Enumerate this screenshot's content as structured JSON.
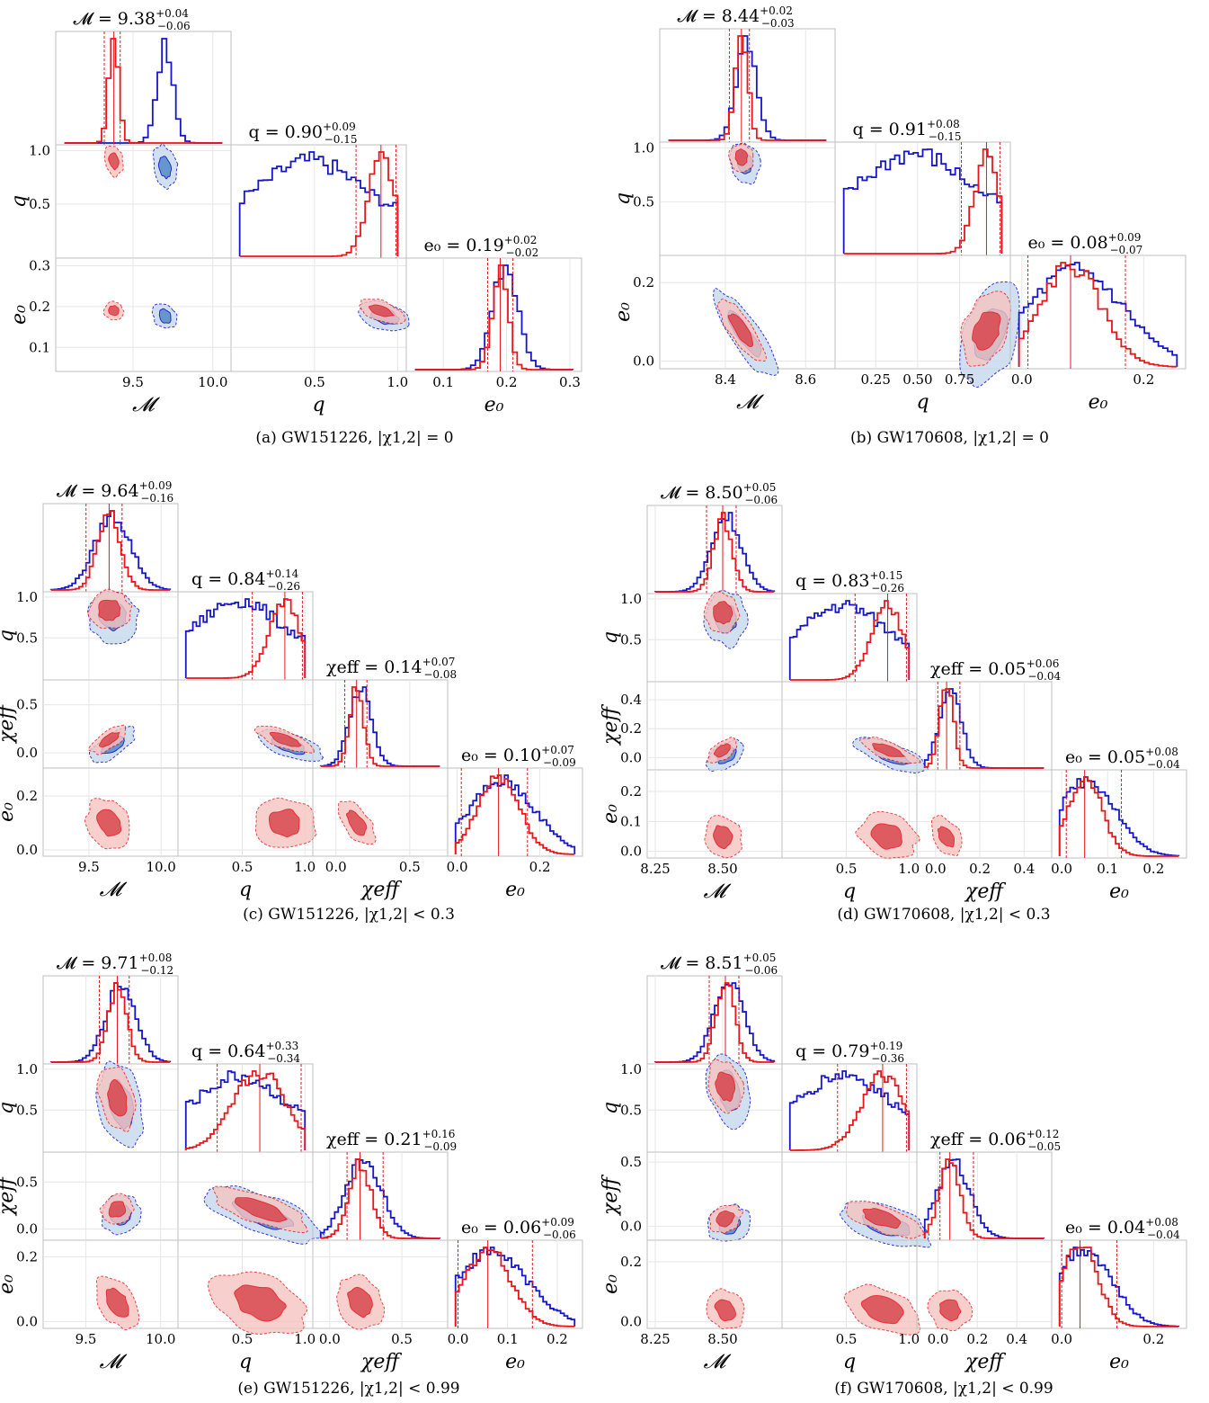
{
  "colors": {
    "red": "#e8161b",
    "red_fill_dark": "#d9484f",
    "red_fill_light": "#f6c4c0",
    "blue": "#1515cc",
    "blue_fill_dark": "#5b8fcc",
    "blue_fill_light": "#c9dbef",
    "grid": "#e6e6e6",
    "frame": "#bfbfbf"
  },
  "chart_data": [
    {
      "type": "corner",
      "caption": "(a) GW151226, |χ1,2| = 0",
      "parameters": [
        {
          "symbol": "𝓜",
          "label": "𝓜",
          "title": "𝓜 = 9.38",
          "plus": "+0.04",
          "minus": "−0.06",
          "range": [
            9.05,
            10.08
          ],
          "ticks": [
            "9.5",
            "10.0"
          ],
          "tick_values": [
            9.5,
            10.0
          ],
          "red_median": 9.38,
          "red_lo": 9.32,
          "red_hi": 9.42,
          "blue_center": 9.7,
          "red_center": 9.38
        },
        {
          "symbol": "q",
          "label": "q",
          "title": "q = 0.90",
          "plus": "+0.09",
          "minus": "−0.15",
          "range": [
            0.03,
            1.02
          ],
          "ticks": [
            "0.5",
            "1.0"
          ],
          "tick_values": [
            0.5,
            1.0
          ],
          "y_ticks": [
            "0.5",
            "1.0"
          ],
          "red_median": 0.9,
          "red_lo": 0.75,
          "red_hi": 0.99
        },
        {
          "symbol": "e₀",
          "label": "e₀",
          "title": "e₀ = 0.19",
          "plus": "+0.02",
          "minus": "−0.02",
          "range": [
            0.05,
            0.31
          ],
          "ticks": [
            "0.1",
            "0.2",
            "0.3"
          ],
          "tick_values": [
            0.1,
            0.2,
            0.3
          ],
          "y_ticks": [
            "0.1",
            "0.2",
            "0.3"
          ],
          "red_median": 0.19,
          "red_lo": 0.17,
          "red_hi": 0.21
        }
      ]
    },
    {
      "type": "corner",
      "caption": "(b) GW170608, |χ1,2| = 0",
      "parameters": [
        {
          "symbol": "𝓜",
          "label": "𝓜",
          "title": "𝓜 = 8.44",
          "plus": "+0.02",
          "minus": "−0.03",
          "range": [
            8.25,
            8.66
          ],
          "ticks": [
            "8.4",
            "8.6"
          ],
          "tick_values": [
            8.4,
            8.6
          ],
          "red_median": 8.44,
          "red_lo": 8.41,
          "red_hi": 8.46
        },
        {
          "symbol": "q",
          "label": "q",
          "title": "q = 0.91",
          "plus": "+0.08",
          "minus": "−0.15",
          "range": [
            0.04,
            1.02
          ],
          "ticks": [
            "0.25",
            "0.50",
            "0.75"
          ],
          "tick_values": [
            0.25,
            0.5,
            0.75
          ],
          "y_ticks": [
            "0.5",
            "1.0"
          ],
          "red_median": 0.91,
          "red_lo": 0.76,
          "red_hi": 0.99
        },
        {
          "symbol": "e₀",
          "label": "e₀",
          "title": "e₀ = 0.08",
          "plus": "+0.09",
          "minus": "−0.07",
          "range": [
            -0.01,
            0.26
          ],
          "ticks": [
            "0.0",
            "0.2"
          ],
          "tick_values": [
            0.0,
            0.2
          ],
          "y_ticks": [
            "0.0",
            "0.2"
          ],
          "red_median": 0.08,
          "red_lo": 0.01,
          "red_hi": 0.17
        }
      ]
    },
    {
      "type": "corner",
      "caption": "(c) GW151226, |χ1,2| < 0.3",
      "parameters": [
        {
          "symbol": "𝓜",
          "label": "𝓜",
          "title": "𝓜 = 9.64",
          "plus": "+0.09",
          "minus": "−0.16",
          "range": [
            9.22,
            10.08
          ],
          "ticks": [
            "9.5",
            "10.0"
          ],
          "tick_values": [
            9.5,
            10.0
          ],
          "red_median": 9.64,
          "red_lo": 9.48,
          "red_hi": 9.73
        },
        {
          "symbol": "q",
          "label": "q",
          "title": "q = 0.84",
          "plus": "+0.14",
          "minus": "−0.26",
          "range": [
            0.03,
            1.02
          ],
          "ticks": [
            "0.5",
            "1.0"
          ],
          "tick_values": [
            0.5,
            1.0
          ],
          "y_ticks": [
            "0.5",
            "1.0"
          ],
          "red_median": 0.84,
          "red_lo": 0.58,
          "red_hi": 0.98
        },
        {
          "symbol": "χeff",
          "label": "χeff",
          "title": "χeff = 0.14",
          "plus": "+0.07",
          "minus": "−0.08",
          "range": [
            -0.12,
            0.72
          ],
          "ticks": [
            "0.0",
            "0.5"
          ],
          "tick_values": [
            0.0,
            0.5
          ],
          "y_ticks": [
            "0.0",
            "0.5"
          ],
          "red_median": 0.14,
          "red_lo": 0.06,
          "red_hi": 0.21
        },
        {
          "symbol": "e₀",
          "label": "e₀",
          "title": "e₀ = 0.10",
          "plus": "+0.07",
          "minus": "−0.09",
          "range": [
            -0.01,
            0.29
          ],
          "ticks": [
            "0.0",
            "0.2"
          ],
          "tick_values": [
            0.0,
            0.2
          ],
          "y_ticks": [
            "0.0",
            "0.2"
          ],
          "red_median": 0.1,
          "red_lo": 0.01,
          "red_hi": 0.17
        }
      ]
    },
    {
      "type": "corner",
      "caption": "(d) GW170608, |χ1,2| < 0.3",
      "parameters": [
        {
          "symbol": "𝓜",
          "label": "𝓜",
          "title": "𝓜 = 8.50",
          "plus": "+0.05",
          "minus": "−0.06",
          "range": [
            8.24,
            8.7
          ],
          "ticks": [
            "8.25",
            "8.50"
          ],
          "tick_values": [
            8.25,
            8.5
          ],
          "red_median": 8.5,
          "red_lo": 8.44,
          "red_hi": 8.55
        },
        {
          "symbol": "q",
          "label": "q",
          "title": "q = 0.83",
          "plus": "+0.15",
          "minus": "−0.26",
          "range": [
            0.03,
            1.02
          ],
          "ticks": [
            "0.5",
            "1.0"
          ],
          "tick_values": [
            0.5,
            1.0
          ],
          "y_ticks": [
            "0.5",
            "1.0"
          ],
          "red_median": 0.83,
          "red_lo": 0.57,
          "red_hi": 0.98
        },
        {
          "symbol": "χeff",
          "label": "χeff",
          "title": "χeff = 0.05",
          "plus": "+0.06",
          "minus": "−0.04",
          "range": [
            -0.06,
            0.5
          ],
          "ticks": [
            "0.0",
            "0.2",
            "0.4"
          ],
          "tick_values": [
            0.0,
            0.2,
            0.4
          ],
          "y_ticks": [
            "0.0",
            "0.2",
            "0.4"
          ],
          "red_median": 0.05,
          "red_lo": 0.01,
          "red_hi": 0.11
        },
        {
          "symbol": "e₀",
          "label": "e₀",
          "title": "e₀ = 0.05",
          "plus": "+0.08",
          "minus": "−0.04",
          "range": [
            -0.01,
            0.26
          ],
          "ticks": [
            "0.0",
            "0.1",
            "0.2"
          ],
          "tick_values": [
            0.0,
            0.1,
            0.2
          ],
          "y_ticks": [
            "0.0",
            "0.1",
            "0.2"
          ],
          "red_median": 0.05,
          "red_lo": 0.01,
          "red_hi": 0.13
        }
      ]
    },
    {
      "type": "corner",
      "caption": "(e) GW151226, |χ1,2| < 0.99",
      "parameters": [
        {
          "symbol": "𝓜",
          "label": "𝓜",
          "title": "𝓜 = 9.71",
          "plus": "+0.08",
          "minus": "−0.12",
          "range": [
            9.25,
            10.08
          ],
          "ticks": [
            "9.5",
            "10.0"
          ],
          "tick_values": [
            9.5,
            10.0
          ],
          "red_median": 9.71,
          "red_lo": 9.59,
          "red_hi": 9.79
        },
        {
          "symbol": "q",
          "label": "q",
          "title": "q = 0.64",
          "plus": "+0.33",
          "minus": "−0.34",
          "range": [
            0.03,
            1.02
          ],
          "ticks": [
            "0.5",
            "1.0"
          ],
          "tick_values": [
            0.5,
            1.0
          ],
          "y_ticks": [
            "0.5",
            "1.0"
          ],
          "red_median": 0.64,
          "red_lo": 0.3,
          "red_hi": 0.97
        },
        {
          "symbol": "χeff",
          "label": "χeff",
          "title": "χeff = 0.21",
          "plus": "+0.16",
          "minus": "−0.09",
          "range": [
            -0.08,
            0.78
          ],
          "ticks": [
            "0.0",
            "0.5"
          ],
          "tick_values": [
            0.0,
            0.5
          ],
          "y_ticks": [
            "0.0",
            "0.5"
          ],
          "red_median": 0.21,
          "red_lo": 0.12,
          "red_hi": 0.37
        },
        {
          "symbol": "e₀",
          "label": "e₀",
          "title": "e₀ = 0.06",
          "plus": "+0.09",
          "minus": "−0.06",
          "range": [
            -0.01,
            0.24
          ],
          "ticks": [
            "0.0",
            "0.1",
            "0.2"
          ],
          "tick_values": [
            0.0,
            0.1,
            0.2
          ],
          "y_ticks": [
            "0.0",
            "0.2"
          ],
          "red_median": 0.06,
          "red_lo": 0.0,
          "red_hi": 0.15
        }
      ]
    },
    {
      "type": "corner",
      "caption": "(f) GW170608, |χ1,2| < 0.99",
      "parameters": [
        {
          "symbol": "𝓜",
          "label": "𝓜",
          "title": "𝓜 = 8.51",
          "plus": "+0.05",
          "minus": "−0.06",
          "range": [
            8.24,
            8.7
          ],
          "ticks": [
            "8.25",
            "8.50"
          ],
          "tick_values": [
            8.25,
            8.5
          ],
          "red_median": 8.51,
          "red_lo": 8.45,
          "red_hi": 8.56
        },
        {
          "symbol": "q",
          "label": "q",
          "title": "q = 0.79",
          "plus": "+0.19",
          "minus": "−0.36",
          "range": [
            0.03,
            1.02
          ],
          "ticks": [
            "0.5",
            "1.0"
          ],
          "tick_values": [
            0.5,
            1.0
          ],
          "y_ticks": [
            "0.5",
            "1.0"
          ],
          "red_median": 0.79,
          "red_lo": 0.43,
          "red_hi": 0.98
        },
        {
          "symbol": "χeff",
          "label": "χeff",
          "title": "χeff = 0.06",
          "plus": "+0.12",
          "minus": "−0.05",
          "range": [
            -0.08,
            0.55
          ],
          "ticks": [
            "0.0",
            "0.2",
            "0.4"
          ],
          "tick_values": [
            0.0,
            0.2,
            0.4
          ],
          "y_ticks": [
            "0.0",
            "0.5"
          ],
          "red_median": 0.06,
          "red_lo": 0.01,
          "red_hi": 0.18
        },
        {
          "symbol": "e₀",
          "label": "e₀",
          "title": "e₀ = 0.04",
          "plus": "+0.08",
          "minus": "−0.04",
          "range": [
            -0.01,
            0.26
          ],
          "ticks": [
            "0.0",
            "0.2"
          ],
          "tick_values": [
            0.0,
            0.2
          ],
          "y_ticks": [
            "0.0",
            "0.2"
          ],
          "red_median": 0.04,
          "red_lo": 0.0,
          "red_hi": 0.12
        }
      ]
    }
  ]
}
